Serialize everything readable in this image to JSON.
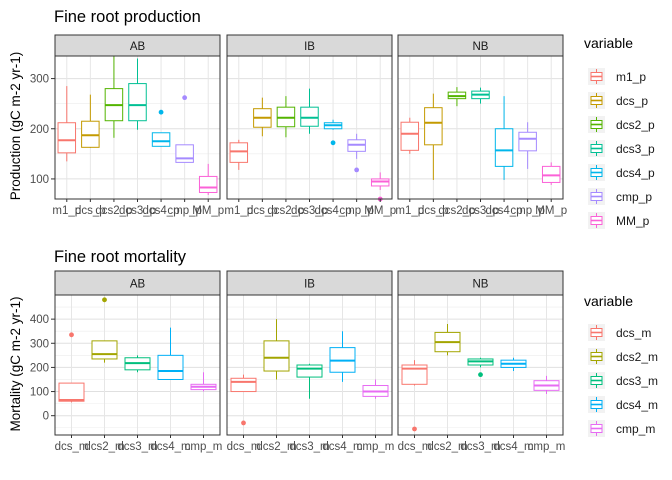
{
  "chart_data": [
    {
      "type": "boxplot",
      "title": "Fine root production",
      "ylabel": "Production (gC m-2 yr-1)",
      "xlabel": "",
      "ylim": [
        60,
        345
      ],
      "yticks": [
        100,
        200,
        300
      ],
      "grid": true,
      "legend": {
        "title": "variable",
        "position": "right",
        "entries": [
          "m1_p",
          "dcs_p",
          "dcs2_p",
          "dcs3_p",
          "dcs4_p",
          "cmp_p",
          "MM_p"
        ]
      },
      "categories": [
        "m1_p",
        "dcs_p",
        "dcs2_p",
        "dcs3_p",
        "dcs4_p",
        "cmp_p",
        "MM_p"
      ],
      "colors": [
        "#F8766D",
        "#C49A00",
        "#53B400",
        "#00C094",
        "#00B6EB",
        "#A58AFF",
        "#FB61D7"
      ],
      "panels": [
        {
          "name": "AB",
          "boxes": [
            {
              "min": 135,
              "q1": 152,
              "median": 177,
              "q3": 212,
              "max": 285,
              "outliers": []
            },
            {
              "min": 162,
              "q1": 163,
              "median": 187,
              "q3": 215,
              "max": 268,
              "outliers": []
            },
            {
              "min": 182,
              "q1": 216,
              "median": 247,
              "q3": 280,
              "max": 345,
              "outliers": []
            },
            {
              "min": 198,
              "q1": 216,
              "median": 247,
              "q3": 290,
              "max": 340,
              "outliers": []
            },
            {
              "min": 165,
              "q1": 165,
              "median": 175,
              "q3": 192,
              "max": 192,
              "outliers": [
                233
              ]
            },
            {
              "min": 133,
              "q1": 133,
              "median": 141,
              "q3": 168,
              "max": 168,
              "outliers": [
                262
              ]
            },
            {
              "min": 68,
              "q1": 73,
              "median": 83,
              "q3": 105,
              "max": 130,
              "outliers": []
            }
          ]
        },
        {
          "name": "IB",
          "boxes": [
            {
              "min": 118,
              "q1": 133,
              "median": 155,
              "q3": 172,
              "max": 178,
              "outliers": []
            },
            {
              "min": 185,
              "q1": 203,
              "median": 222,
              "q3": 240,
              "max": 262,
              "outliers": []
            },
            {
              "min": 183,
              "q1": 204,
              "median": 222,
              "q3": 243,
              "max": 265,
              "outliers": []
            },
            {
              "min": 190,
              "q1": 205,
              "median": 222,
              "q3": 243,
              "max": 280,
              "outliers": []
            },
            {
              "min": 198,
              "q1": 200,
              "median": 207,
              "q3": 212,
              "max": 218,
              "outliers": [
                172
              ]
            },
            {
              "min": 140,
              "q1": 155,
              "median": 168,
              "q3": 178,
              "max": 190,
              "outliers": [
                118
              ]
            },
            {
              "min": 78,
              "q1": 86,
              "median": 95,
              "q3": 100,
              "max": 113,
              "outliers": [
                60
              ]
            }
          ]
        },
        {
          "name": "NB",
          "boxes": [
            {
              "min": 150,
              "q1": 157,
              "median": 190,
              "q3": 213,
              "max": 222,
              "outliers": []
            },
            {
              "min": 98,
              "q1": 168,
              "median": 212,
              "q3": 242,
              "max": 270,
              "outliers": []
            },
            {
              "min": 245,
              "q1": 260,
              "median": 265,
              "q3": 273,
              "max": 283,
              "outliers": []
            },
            {
              "min": 250,
              "q1": 260,
              "median": 268,
              "q3": 275,
              "max": 282,
              "outliers": []
            },
            {
              "min": 98,
              "q1": 125,
              "median": 157,
              "q3": 200,
              "max": 265,
              "outliers": []
            },
            {
              "min": 120,
              "q1": 156,
              "median": 180,
              "q3": 193,
              "max": 213,
              "outliers": []
            },
            {
              "min": 88,
              "q1": 93,
              "median": 107,
              "q3": 125,
              "max": 133,
              "outliers": []
            }
          ]
        }
      ]
    },
    {
      "type": "boxplot",
      "title": "Fine root mortality",
      "ylabel": "Mortality (gC m-2 yr-1)",
      "xlabel": "",
      "ylim": [
        -80,
        500
      ],
      "yticks": [
        0,
        100,
        200,
        300,
        400
      ],
      "grid": true,
      "legend": {
        "title": "variable",
        "position": "right",
        "entries": [
          "dcs_m",
          "dcs2_m",
          "dcs3_m",
          "dcs4_m",
          "cmp_m"
        ]
      },
      "categories": [
        "dcs_m",
        "dcs2_m",
        "dcs3_m",
        "dcs4_m",
        "cmp_m"
      ],
      "colors": [
        "#F8766D",
        "#A3A500",
        "#00BF7D",
        "#00B0F6",
        "#E76BF3"
      ],
      "panels": [
        {
          "name": "AB",
          "boxes": [
            {
              "min": 55,
              "q1": 60,
              "median": 65,
              "q3": 135,
              "max": 135,
              "outliers": [
                335
              ]
            },
            {
              "min": 220,
              "q1": 235,
              "median": 255,
              "q3": 310,
              "max": 310,
              "outliers": [
                480
              ]
            },
            {
              "min": 180,
              "q1": 190,
              "median": 218,
              "q3": 240,
              "max": 250,
              "outliers": []
            },
            {
              "min": 150,
              "q1": 150,
              "median": 185,
              "q3": 250,
              "max": 365,
              "outliers": []
            },
            {
              "min": 100,
              "q1": 108,
              "median": 120,
              "q3": 130,
              "max": 180,
              "outliers": []
            }
          ]
        },
        {
          "name": "IB",
          "boxes": [
            {
              "min": 100,
              "q1": 100,
              "median": 140,
              "q3": 155,
              "max": 170,
              "outliers": [
                -30
              ]
            },
            {
              "min": 150,
              "q1": 185,
              "median": 240,
              "q3": 310,
              "max": 400,
              "outliers": []
            },
            {
              "min": 70,
              "q1": 160,
              "median": 195,
              "q3": 210,
              "max": 215,
              "outliers": []
            },
            {
              "min": 140,
              "q1": 180,
              "median": 228,
              "q3": 282,
              "max": 350,
              "outliers": []
            },
            {
              "min": 70,
              "q1": 80,
              "median": 100,
              "q3": 125,
              "max": 150,
              "outliers": []
            }
          ]
        },
        {
          "name": "NB",
          "boxes": [
            {
              "min": 125,
              "q1": 130,
              "median": 195,
              "q3": 210,
              "max": 230,
              "outliers": [
                -55
              ]
            },
            {
              "min": 250,
              "q1": 265,
              "median": 305,
              "q3": 345,
              "max": 380,
              "outliers": []
            },
            {
              "min": 200,
              "q1": 210,
              "median": 225,
              "q3": 235,
              "max": 240,
              "outliers": [
                170
              ]
            },
            {
              "min": 185,
              "q1": 200,
              "median": 215,
              "q3": 230,
              "max": 240,
              "outliers": []
            },
            {
              "min": 90,
              "q1": 105,
              "median": 125,
              "q3": 145,
              "max": 165,
              "outliers": []
            }
          ]
        }
      ]
    }
  ]
}
